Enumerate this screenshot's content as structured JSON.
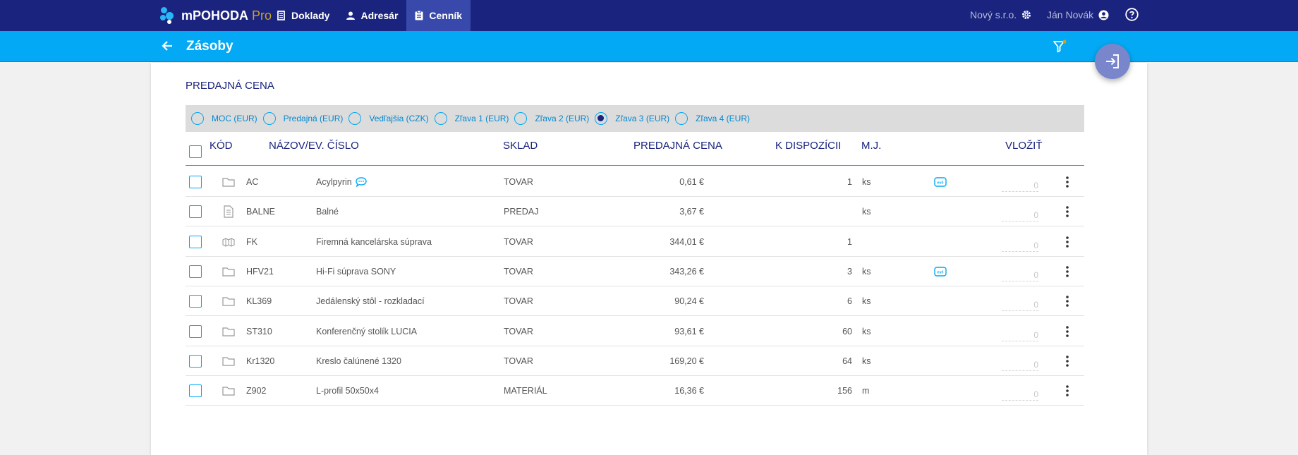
{
  "app": {
    "name": "mPOHODA",
    "edition": "Pro"
  },
  "nav": [
    {
      "label": "Doklady",
      "icon": "documents-icon"
    },
    {
      "label": "Adresár",
      "icon": "person-icon"
    },
    {
      "label": "Cenník",
      "icon": "clipboard-icon",
      "active": true
    }
  ],
  "header": {
    "company": "Nový s.r.o.",
    "user": "Ján Novák"
  },
  "page": {
    "title": "Zásoby"
  },
  "price_section": {
    "title": "PREDAJNÁ CENA",
    "options": [
      {
        "label": "MOC (EUR)",
        "checked": false
      },
      {
        "label": "Predajná (EUR)",
        "checked": false
      },
      {
        "label": "Vedľajšia (CZK)",
        "checked": false
      },
      {
        "label": "Zľava 1 (EUR)",
        "checked": false
      },
      {
        "label": "Zľava 2 (EUR)",
        "checked": false
      },
      {
        "label": "Zľava 3 (EUR)",
        "checked": true
      },
      {
        "label": "Zľava 4 (EUR)",
        "checked": false
      }
    ]
  },
  "table": {
    "columns": {
      "code": "KÓD",
      "name": "NÁZOV/EV. ČÍSLO",
      "sklad": "SKLAD",
      "price": "PREDAJNÁ CENA",
      "avail": "K DISPOZÍCII",
      "mj": "M.J.",
      "insert": "VLOŽIŤ"
    },
    "rows": [
      {
        "icon": "folder-icon",
        "code": "AC",
        "name": "Acylpyrin",
        "comment": true,
        "sklad": "TOVAR",
        "price": "0,61 €",
        "avail": "1",
        "mj": "ks",
        "evc": true,
        "qty": "0"
      },
      {
        "icon": "document-icon",
        "code": "BALNE",
        "name": "Balné",
        "comment": false,
        "sklad": "PREDAJ",
        "price": "3,67 €",
        "avail": "",
        "mj": "ks",
        "evc": false,
        "qty": "0"
      },
      {
        "icon": "boxes-icon",
        "code": "FK",
        "name": "Firemná kancelárska súprava",
        "comment": false,
        "sklad": "TOVAR",
        "price": "344,01 €",
        "avail": "1",
        "mj": "",
        "evc": false,
        "qty": "0"
      },
      {
        "icon": "folder-icon",
        "code": "HFV21",
        "name": "Hi-Fi súprava SONY",
        "comment": false,
        "sklad": "TOVAR",
        "price": "343,26 €",
        "avail": "3",
        "mj": "ks",
        "evc": true,
        "qty": "0"
      },
      {
        "icon": "folder-icon",
        "code": "KL369",
        "name": "Jedálenský stôl - rozkladací",
        "comment": false,
        "sklad": "TOVAR",
        "price": "90,24 €",
        "avail": "6",
        "mj": "ks",
        "evc": false,
        "qty": "0"
      },
      {
        "icon": "folder-icon",
        "code": "ST310",
        "name": "Konferenčný stolík LUCIA",
        "comment": false,
        "sklad": "TOVAR",
        "price": "93,61 €",
        "avail": "60",
        "mj": "ks",
        "evc": false,
        "qty": "0"
      },
      {
        "icon": "folder-icon",
        "code": "Kr1320",
        "name": "Kreslo čalúnené 1320",
        "comment": false,
        "sklad": "TOVAR",
        "price": "169,20 €",
        "avail": "64",
        "mj": "ks",
        "evc": false,
        "qty": "0"
      },
      {
        "icon": "folder-icon",
        "code": "Z902",
        "name": "L-profil 50x50x4",
        "comment": false,
        "sklad": "MATERIÁL",
        "price": "16,36 €",
        "avail": "156",
        "mj": "m",
        "evc": false,
        "qty": "0"
      }
    ]
  },
  "colors": {
    "navy": "#1a237e",
    "accent": "#03a9f4",
    "active_nav": "#3949ab",
    "fab": "#7986cb"
  }
}
